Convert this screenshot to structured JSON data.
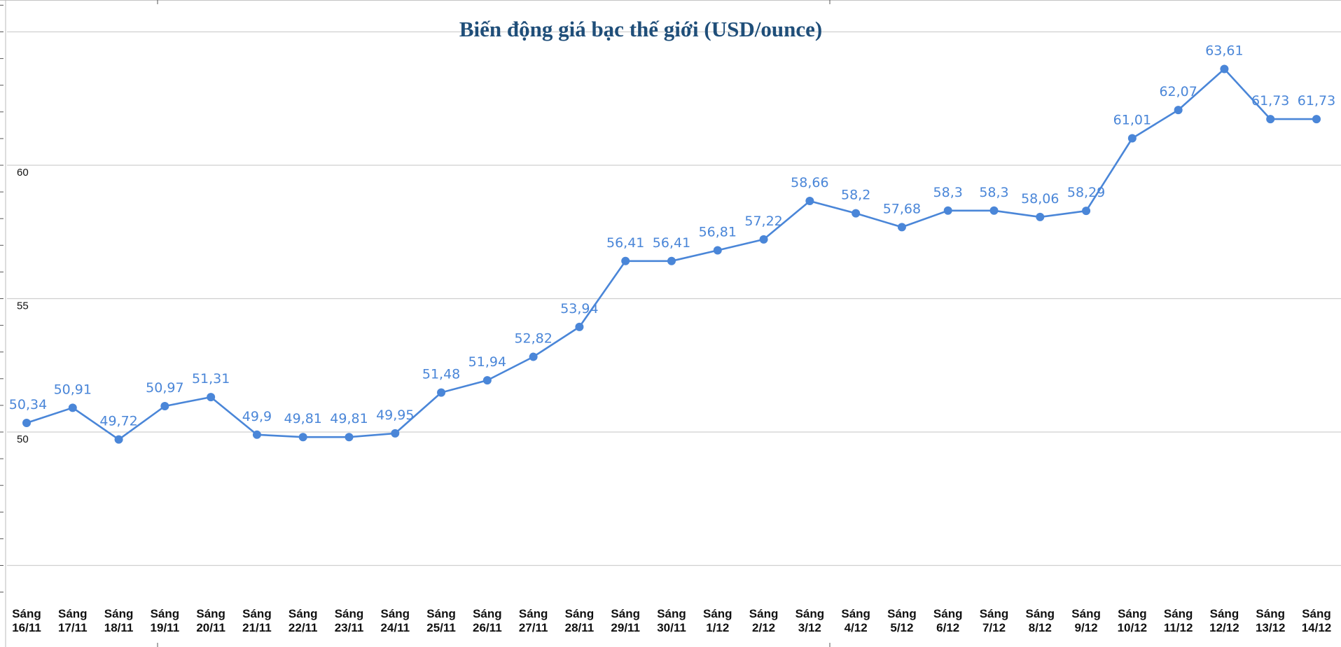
{
  "chart_data": {
    "type": "line",
    "title": "Biến động giá bạc thế giới (USD/ounce)",
    "xlabel": "",
    "ylabel": "",
    "ylim": [
      45,
      65
    ],
    "yticks": [
      50,
      55,
      60
    ],
    "grid": true,
    "color": "#4a86d8",
    "categories": [
      "Sáng 16/11",
      "Sáng 17/11",
      "Sáng 18/11",
      "Sáng 19/11",
      "Sáng 20/11",
      "Sáng 21/11",
      "Sáng 22/11",
      "Sáng 23/11",
      "Sáng 24/11",
      "Sáng 25/11",
      "Sáng 26/11",
      "Sáng 27/11",
      "Sáng 28/11",
      "Sáng 29/11",
      "Sáng 30/11",
      "Sáng 1/12",
      "Sáng 2/12",
      "Sáng 3/12",
      "Sáng 4/12",
      "Sáng 5/12",
      "Sáng 6/12",
      "Sáng 7/12",
      "Sáng 8/12",
      "Sáng 9/12",
      "Sáng 10/12",
      "Sáng 11/12",
      "Sáng 12/12",
      "Sáng 13/12",
      "Sáng 14/12"
    ],
    "values": [
      50.34,
      50.91,
      49.72,
      50.97,
      51.31,
      49.9,
      49.81,
      49.81,
      49.95,
      51.48,
      51.94,
      52.82,
      53.94,
      56.41,
      56.41,
      56.81,
      57.22,
      58.66,
      58.2,
      57.68,
      58.3,
      58.3,
      58.06,
      58.29,
      61.01,
      62.07,
      63.61,
      61.73,
      61.73
    ],
    "data_labels": [
      "50,34",
      "50,91",
      "49,72",
      "50,97",
      "51,31",
      "49,9",
      "49,81",
      "49,81",
      "49,95",
      "51,48",
      "51,94",
      "52,82",
      "53,94",
      "56,41",
      "56,41",
      "56,81",
      "57,22",
      "58,66",
      "58,2",
      "57,68",
      "58,3",
      "58,3",
      "58,06",
      "58,29",
      "61,01",
      "62,07",
      "63,61",
      "61,73",
      "61,73"
    ]
  }
}
